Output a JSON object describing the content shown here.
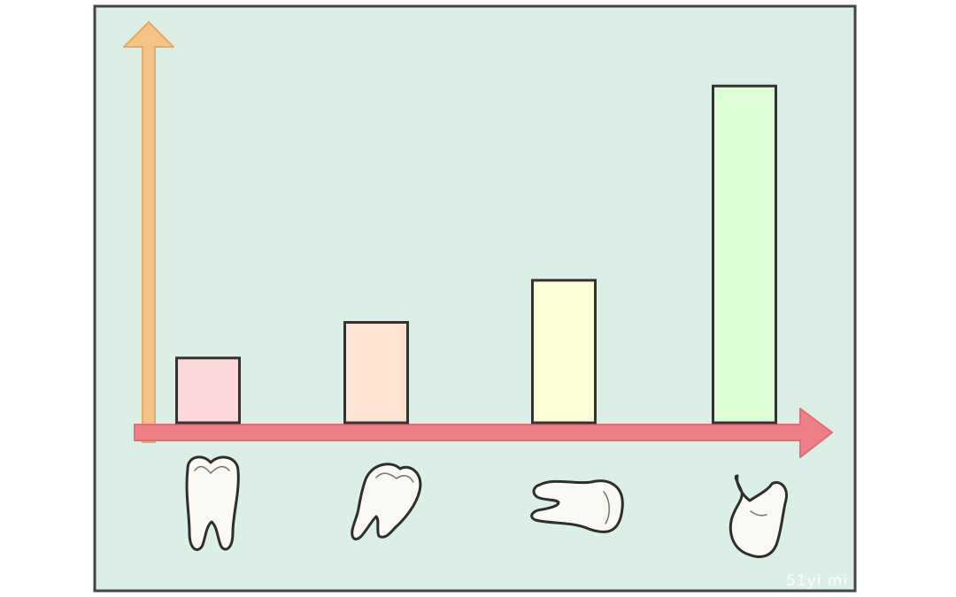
{
  "chart_data": {
    "type": "bar",
    "categories": [
      "",
      "",
      "",
      ""
    ],
    "values": [
      1,
      1.55,
      2.2,
      5.2
    ],
    "ylim": [
      0,
      6.2
    ],
    "grid": false,
    "legend": "none",
    "category_icons": [
      "tooth-upright-icon",
      "tooth-tilted-icon",
      "tooth-horizontal-icon",
      "tooth-broken-icon"
    ],
    "colors": {
      "background": "#dcefe7",
      "frame": "#444444",
      "y_axis": "#f6c386",
      "x_axis": "#ef7f86",
      "bars": [
        "#fdd8da",
        "#fce3d2",
        "#fdfdd6",
        "#ddfdd4"
      ],
      "bar_stroke": "#333333",
      "tooth_fill": "#fbf9f3"
    }
  },
  "watermark": "51yi mi"
}
